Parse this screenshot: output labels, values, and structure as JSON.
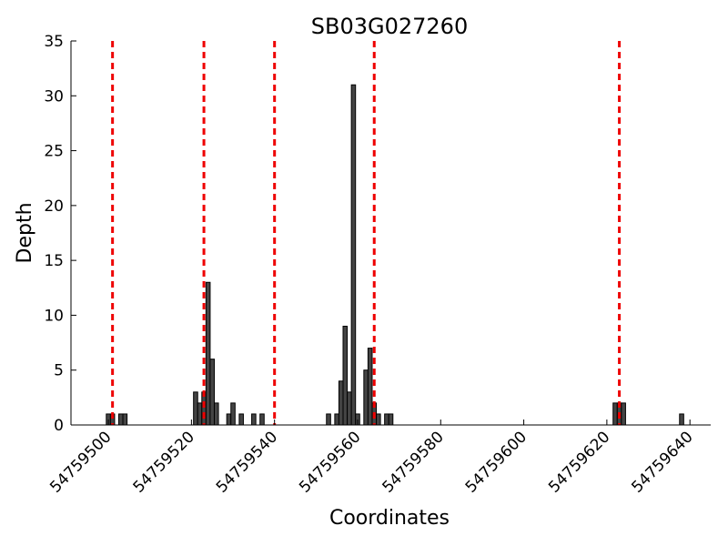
{
  "chart_data": {
    "type": "bar",
    "title": "SB03G027260",
    "xlabel": "Coordinates",
    "ylabel": "Depth",
    "xlim": [
      54759491,
      54759645
    ],
    "ylim": [
      0,
      35
    ],
    "xticks": [
      54759500,
      54759520,
      54759540,
      54759560,
      54759580,
      54759600,
      54759620,
      54759640
    ],
    "yticks": [
      0,
      5,
      10,
      15,
      20,
      25,
      30,
      35
    ],
    "bar_color": "#444444",
    "vline_color": "#ee0000",
    "vlines": [
      54759501,
      54759523,
      54759540,
      54759564,
      54759623
    ],
    "series": [
      {
        "x": [
          54759500,
          54759501,
          54759503,
          54759504,
          54759521,
          54759522,
          54759523,
          54759524,
          54759525,
          54759526,
          54759527,
          54759529,
          54759530,
          54759532,
          54759535,
          54759537,
          54759553,
          54759555,
          54759556,
          54759557,
          54759558,
          54759559,
          54759560,
          54759562,
          54759563,
          54759564,
          54759565,
          54759567,
          54759568,
          54759622,
          54759623,
          54759624,
          54759638
        ],
        "values": [
          1,
          1,
          1,
          1,
          3,
          2,
          3,
          13,
          6,
          2,
          0,
          1,
          2,
          1,
          1,
          1,
          1,
          1,
          4,
          9,
          3,
          31,
          1,
          5,
          7,
          2,
          1,
          1,
          1,
          2,
          2,
          2,
          1
        ]
      }
    ]
  }
}
